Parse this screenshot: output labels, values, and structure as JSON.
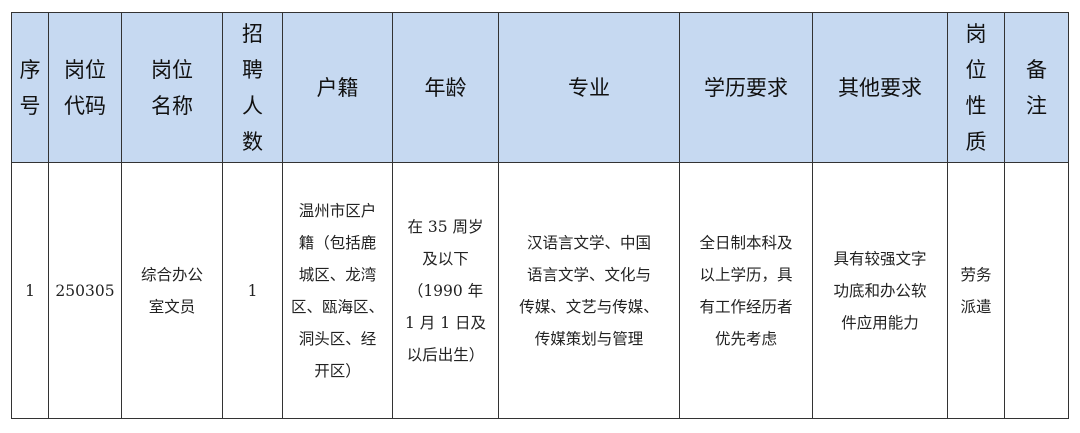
{
  "header_bg": "#c6d9f1",
  "columns": [
    [
      "序",
      "号"
    ],
    [
      "岗位",
      "代码"
    ],
    [
      "岗位",
      "名称"
    ],
    [
      "招",
      "聘",
      "人",
      "数"
    ],
    [
      "户籍"
    ],
    [
      "年龄"
    ],
    [
      "专业"
    ],
    [
      "学历要求"
    ],
    [
      "其他要求"
    ],
    [
      "岗",
      "位",
      "性",
      "质"
    ],
    [
      "备",
      "注"
    ]
  ],
  "rows": [
    [
      [
        "1"
      ],
      [
        "250305"
      ],
      [
        "综合办公",
        "室文员"
      ],
      [
        "1"
      ],
      [
        "温州市区户",
        "籍（包括鹿",
        "城区、龙湾",
        "区、瓯海区、",
        "洞头区、经",
        "开区）"
      ],
      [
        "在 35 周岁",
        "及以下",
        "（1990 年",
        "1 月 1 日及",
        "以后出生）"
      ],
      [
        "汉语言文学、中国",
        "语言文学、文化与",
        "传媒、文艺与传媒、",
        "传媒策划与管理"
      ],
      [
        "全日制本科及",
        "以上学历，具",
        "有工作经历者",
        "优先考虑"
      ],
      [
        "具有较强文字",
        "功底和办公软",
        "件应用能力"
      ],
      [
        "劳务",
        "派遣"
      ],
      []
    ]
  ]
}
